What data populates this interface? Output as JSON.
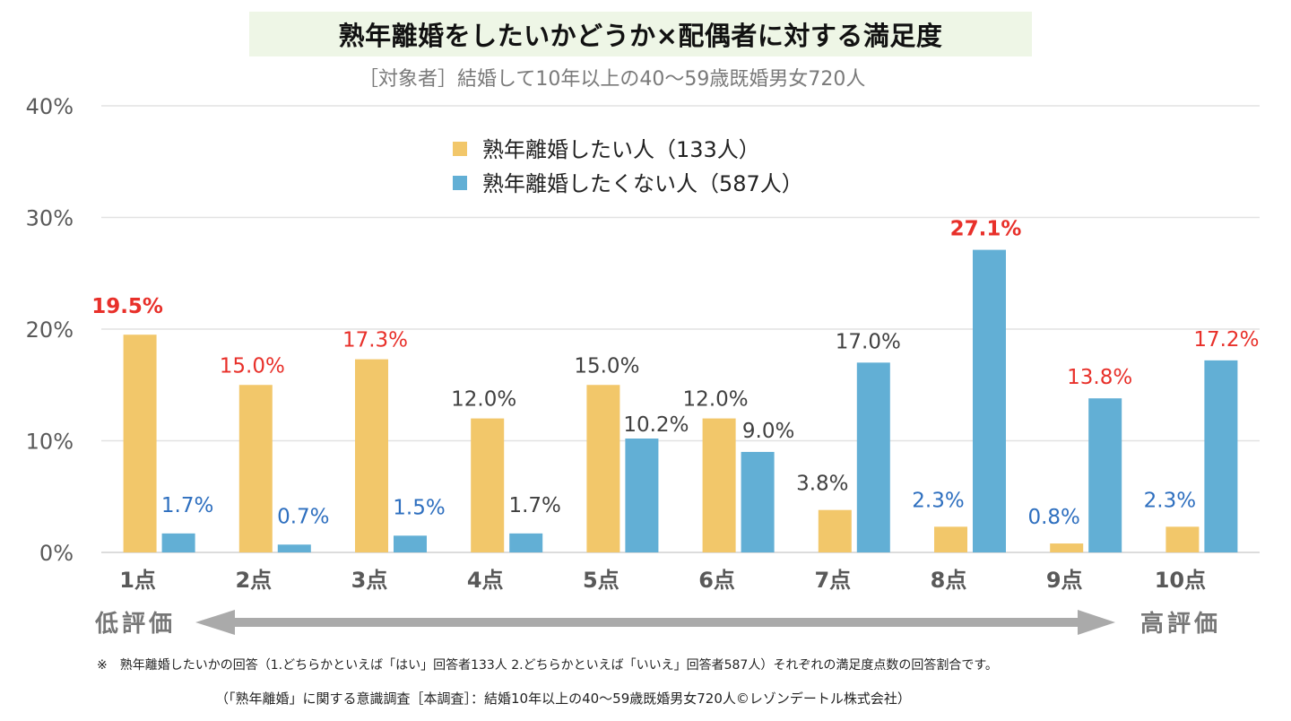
{
  "header": {
    "title": "熟年離婚をしたいかどうか×配偶者に対する満足度",
    "subtitle": "［対象者］結婚して10年以上の40～59歳既婚男女720人"
  },
  "chart_data": {
    "type": "bar",
    "title": "熟年離婚をしたいかどうか×配偶者に対する満足度",
    "subtitle": "［対象者］結婚して10年以上の40～59歳既婚男女720人",
    "xlabel": "",
    "ylabel": "",
    "categories": [
      "1点",
      "2点",
      "3点",
      "4点",
      "5点",
      "6点",
      "7点",
      "8点",
      "9点",
      "10点"
    ],
    "ylim": [
      0,
      40
    ],
    "yticks": [
      0,
      10,
      20,
      30,
      40
    ],
    "ytick_labels": [
      "0%",
      "10%",
      "20%",
      "30%",
      "40%"
    ],
    "grid": true,
    "legend_position": "top-center",
    "series": [
      {
        "name": "熟年離婚したい人（133人）",
        "color": "#f2c76a",
        "values": [
          19.5,
          15.0,
          17.3,
          12.0,
          15.0,
          12.0,
          3.8,
          2.3,
          0.8,
          2.3
        ],
        "labels": [
          "19.5%",
          "15.0%",
          "17.3%",
          "12.0%",
          "15.0%",
          "12.0%",
          "3.8%",
          "2.3%",
          "0.8%",
          "2.3%"
        ],
        "label_colors": [
          "#e8302a",
          "#e8302a",
          "#e8302a",
          "#404040",
          "#404040",
          "#404040",
          "#404040",
          "#2e6fbf",
          "#2e6fbf",
          "#2e6fbf"
        ],
        "label_bold": [
          true,
          false,
          false,
          false,
          false,
          false,
          false,
          false,
          false,
          false
        ]
      },
      {
        "name": "熟年離婚したくない人（587人）",
        "color": "#62afd5",
        "values": [
          1.7,
          0.7,
          1.5,
          1.7,
          10.2,
          9.0,
          17.0,
          27.1,
          13.8,
          17.2
        ],
        "labels": [
          "1.7%",
          "0.7%",
          "1.5%",
          "1.7%",
          "10.2%",
          "9.0%",
          "17.0%",
          "27.1%",
          "13.8%",
          "17.2%"
        ],
        "label_colors": [
          "#2e6fbf",
          "#2e6fbf",
          "#2e6fbf",
          "#404040",
          "#404040",
          "#404040",
          "#404040",
          "#e8302a",
          "#e8302a",
          "#e8302a"
        ],
        "label_bold": [
          false,
          false,
          false,
          false,
          false,
          false,
          false,
          true,
          false,
          false
        ]
      }
    ],
    "annotations": {
      "low": "低評価",
      "high": "高評価"
    }
  },
  "footnotes": {
    "note": "※　熟年離婚したいかの回答（1.どちらかといえば「はい」回答者133人 2.どちらかといえば「いいえ」回答者587人）それぞれの満足度点数の回答割合です。",
    "source": "（「熟年離婚」に関する意識調査［本調査］：結婚10年以上の40～59歳既婚男女720人©レゾンデートル株式会社）"
  }
}
